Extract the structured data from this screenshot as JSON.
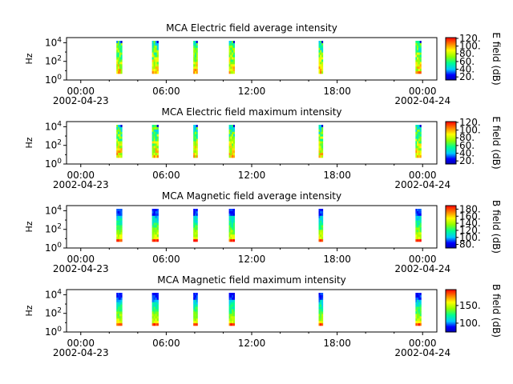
{
  "chart_data": [
    {
      "type": "heatmap",
      "title": "MCA  Electric field average intensity",
      "ylabel": "Hz",
      "y_ticks": [
        "10^0",
        "10^2",
        "10^4"
      ],
      "x_ticks": [
        {
          "time": "00:00",
          "date": "2002-04-23"
        },
        {
          "time": "06:00",
          "date": ""
        },
        {
          "time": "12:00",
          "date": ""
        },
        {
          "time": "18:00",
          "date": ""
        },
        {
          "time": "00:00",
          "date": "2002-04-24"
        }
      ],
      "colorbar": {
        "label": "E field (dB)",
        "range": [
          12,
          122
        ],
        "ticks": [
          20,
          40,
          60,
          80,
          100,
          120
        ]
      },
      "segments_hours": [
        [
          2.5,
          2.9
        ],
        [
          5.0,
          5.45
        ],
        [
          7.9,
          8.2
        ],
        [
          10.4,
          10.8
        ],
        [
          16.7,
          17.0
        ],
        [
          23.5,
          23.9
        ]
      ],
      "profile": "efield"
    },
    {
      "type": "heatmap",
      "title": "MCA  Electric field maximum intensity",
      "ylabel": "Hz",
      "y_ticks": [
        "10^0",
        "10^2",
        "10^4"
      ],
      "x_ticks": [
        {
          "time": "00:00",
          "date": "2002-04-23"
        },
        {
          "time": "06:00",
          "date": ""
        },
        {
          "time": "12:00",
          "date": ""
        },
        {
          "time": "18:00",
          "date": ""
        },
        {
          "time": "00:00",
          "date": "2002-04-24"
        }
      ],
      "colorbar": {
        "label": "E field (dB)",
        "range": [
          12,
          122
        ],
        "ticks": [
          20,
          40,
          60,
          80,
          100,
          120
        ]
      },
      "segments_hours": [
        [
          2.5,
          2.9
        ],
        [
          5.0,
          5.45
        ],
        [
          7.9,
          8.2
        ],
        [
          10.4,
          10.8
        ],
        [
          16.7,
          17.0
        ],
        [
          23.5,
          23.9
        ]
      ],
      "profile": "efield"
    },
    {
      "type": "heatmap",
      "title": "MCA  Magnetic field average intensity",
      "ylabel": "Hz",
      "y_ticks": [
        "10^0",
        "10^2",
        "10^4"
      ],
      "x_ticks": [
        {
          "time": "00:00",
          "date": "2002-04-23"
        },
        {
          "time": "06:00",
          "date": ""
        },
        {
          "time": "12:00",
          "date": ""
        },
        {
          "time": "18:00",
          "date": ""
        },
        {
          "time": "00:00",
          "date": "2002-04-24"
        }
      ],
      "colorbar": {
        "label": "B field (dB)",
        "range": [
          70,
          190
        ],
        "ticks": [
          80,
          100,
          120,
          140,
          160,
          180
        ]
      },
      "segments_hours": [
        [
          2.5,
          2.9
        ],
        [
          5.0,
          5.45
        ],
        [
          7.9,
          8.2
        ],
        [
          10.4,
          10.8
        ],
        [
          16.7,
          17.0
        ],
        [
          23.5,
          23.9
        ]
      ],
      "profile": "bfield"
    },
    {
      "type": "heatmap",
      "title": "MCA  Magnetic field maximum intensity",
      "ylabel": "Hz",
      "y_ticks": [
        "10^0",
        "10^2",
        "10^4"
      ],
      "x_ticks": [
        {
          "time": "00:00",
          "date": "2002-04-23"
        },
        {
          "time": "06:00",
          "date": ""
        },
        {
          "time": "12:00",
          "date": ""
        },
        {
          "time": "18:00",
          "date": ""
        },
        {
          "time": "00:00",
          "date": "2002-04-24"
        }
      ],
      "colorbar": {
        "label": "B field (dB)",
        "range": [
          75,
          195
        ],
        "ticks": [
          100,
          150
        ]
      },
      "segments_hours": [
        [
          2.5,
          2.9
        ],
        [
          5.0,
          5.45
        ],
        [
          7.9,
          8.2
        ],
        [
          10.4,
          10.8
        ],
        [
          16.7,
          17.0
        ],
        [
          23.5,
          23.9
        ]
      ],
      "profile": "bfield"
    }
  ]
}
